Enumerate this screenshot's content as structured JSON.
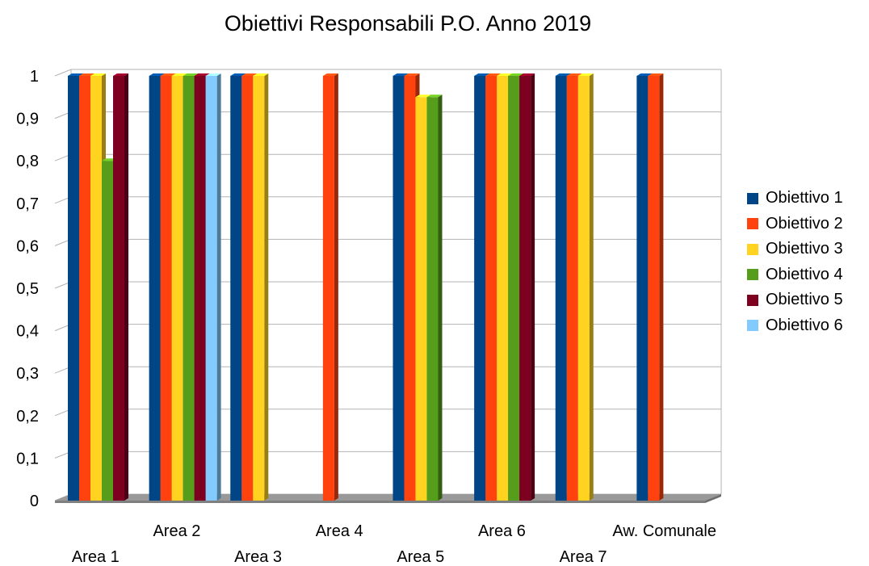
{
  "chart_data": {
    "type": "bar",
    "title": "Obiettivi Responsabili P.O. Anno 2019",
    "xlabel": "",
    "ylabel": "",
    "ylim": [
      0,
      1
    ],
    "yticks": [
      "0",
      "0,1",
      "0,2",
      "0,3",
      "0,4",
      "0,5",
      "0,6",
      "0,7",
      "0,8",
      "0,9",
      "1"
    ],
    "categories": [
      "Area 1",
      "Area 2",
      "Area 3",
      "Area 4",
      "Area 5",
      "Area 6",
      "Area 7",
      "Aw. Comunale"
    ],
    "grid": true,
    "legend_position": "right",
    "series": [
      {
        "name": "Obiettivo 1",
        "color": "#004586",
        "values": [
          1,
          1,
          1,
          null,
          1,
          1,
          1,
          1
        ]
      },
      {
        "name": "Obiettivo 2",
        "color": "#ff420e",
        "values": [
          1,
          1,
          1,
          1,
          1,
          1,
          1,
          1
        ]
      },
      {
        "name": "Obiettivo 3",
        "color": "#ffd320",
        "values": [
          1,
          1,
          1,
          null,
          0.95,
          1,
          1,
          null
        ]
      },
      {
        "name": "Obiettivo 4",
        "color": "#579d1c",
        "values": [
          0.8,
          1,
          null,
          null,
          0.95,
          1,
          null,
          null
        ]
      },
      {
        "name": "Obiettivo 5",
        "color": "#7e0021",
        "values": [
          1,
          1,
          null,
          null,
          null,
          1,
          null,
          null
        ]
      },
      {
        "name": "Obiettivo 6",
        "color": "#83caff",
        "values": [
          null,
          1,
          null,
          null,
          null,
          null,
          null,
          null
        ]
      }
    ]
  }
}
